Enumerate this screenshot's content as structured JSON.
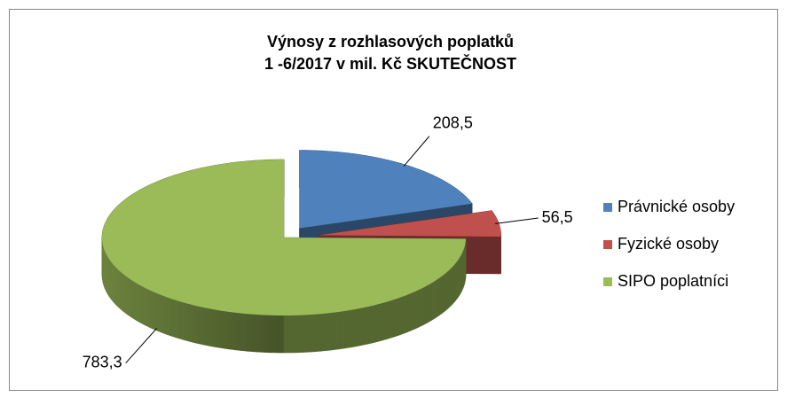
{
  "chart_data": {
    "type": "pie3d",
    "title": [
      "Výnosy z rozhlasových poplatků",
      "1 -6/2017 v mil. Kč SKUTEČNOST"
    ],
    "categories": [
      "Právnické osoby",
      "Fyzické osoby",
      "SIPO poplatníci"
    ],
    "values": [
      208.5,
      56.5,
      783.3
    ],
    "value_labels": [
      "208,5",
      "56,5",
      "783,3"
    ],
    "colors": [
      "#4f81bd",
      "#c0504d",
      "#9bbb59"
    ],
    "legend": "right"
  }
}
